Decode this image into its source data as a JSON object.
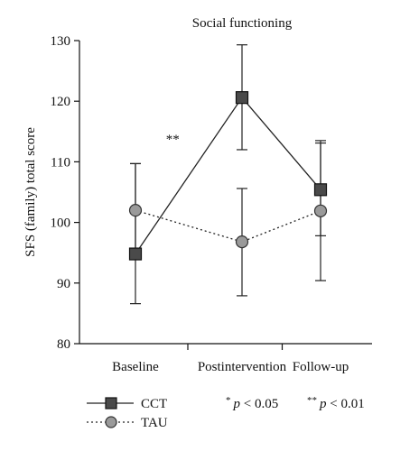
{
  "chart_data": {
    "type": "line",
    "title": "Social functioning",
    "xlabel": "",
    "ylabel": "SFS (family) total score",
    "categories": [
      "Baseline",
      "Postintervention",
      "Follow-up"
    ],
    "ylim": [
      80,
      130
    ],
    "yticks": [
      80,
      90,
      100,
      110,
      120,
      130
    ],
    "series": [
      {
        "name": "CCT",
        "marker": "square",
        "line_style": "solid",
        "color": "#4a4a4a",
        "values": [
          94.8,
          120.6,
          105.4
        ],
        "error_upper": [
          109.7,
          129.3,
          113.1
        ],
        "error_lower": [
          86.6,
          112.0,
          97.8
        ]
      },
      {
        "name": "TAU",
        "marker": "circle",
        "line_style": "dotted",
        "color": "#9a9a9a",
        "values": [
          102.0,
          96.8,
          101.9
        ],
        "error_upper": [
          109.7,
          105.6,
          113.5
        ],
        "error_lower": [
          94.3,
          87.9,
          90.4
        ]
      }
    ],
    "annotations": [
      {
        "text": "**",
        "between": [
          "Baseline",
          "Postintervention"
        ],
        "y": 113.8
      }
    ],
    "significance_legend": {
      "single": {
        "star": "*",
        "text": "p < 0.05"
      },
      "double": {
        "star": "**",
        "text": "p < 0.01"
      }
    },
    "grid": false,
    "legend_position": "bottom-left"
  }
}
